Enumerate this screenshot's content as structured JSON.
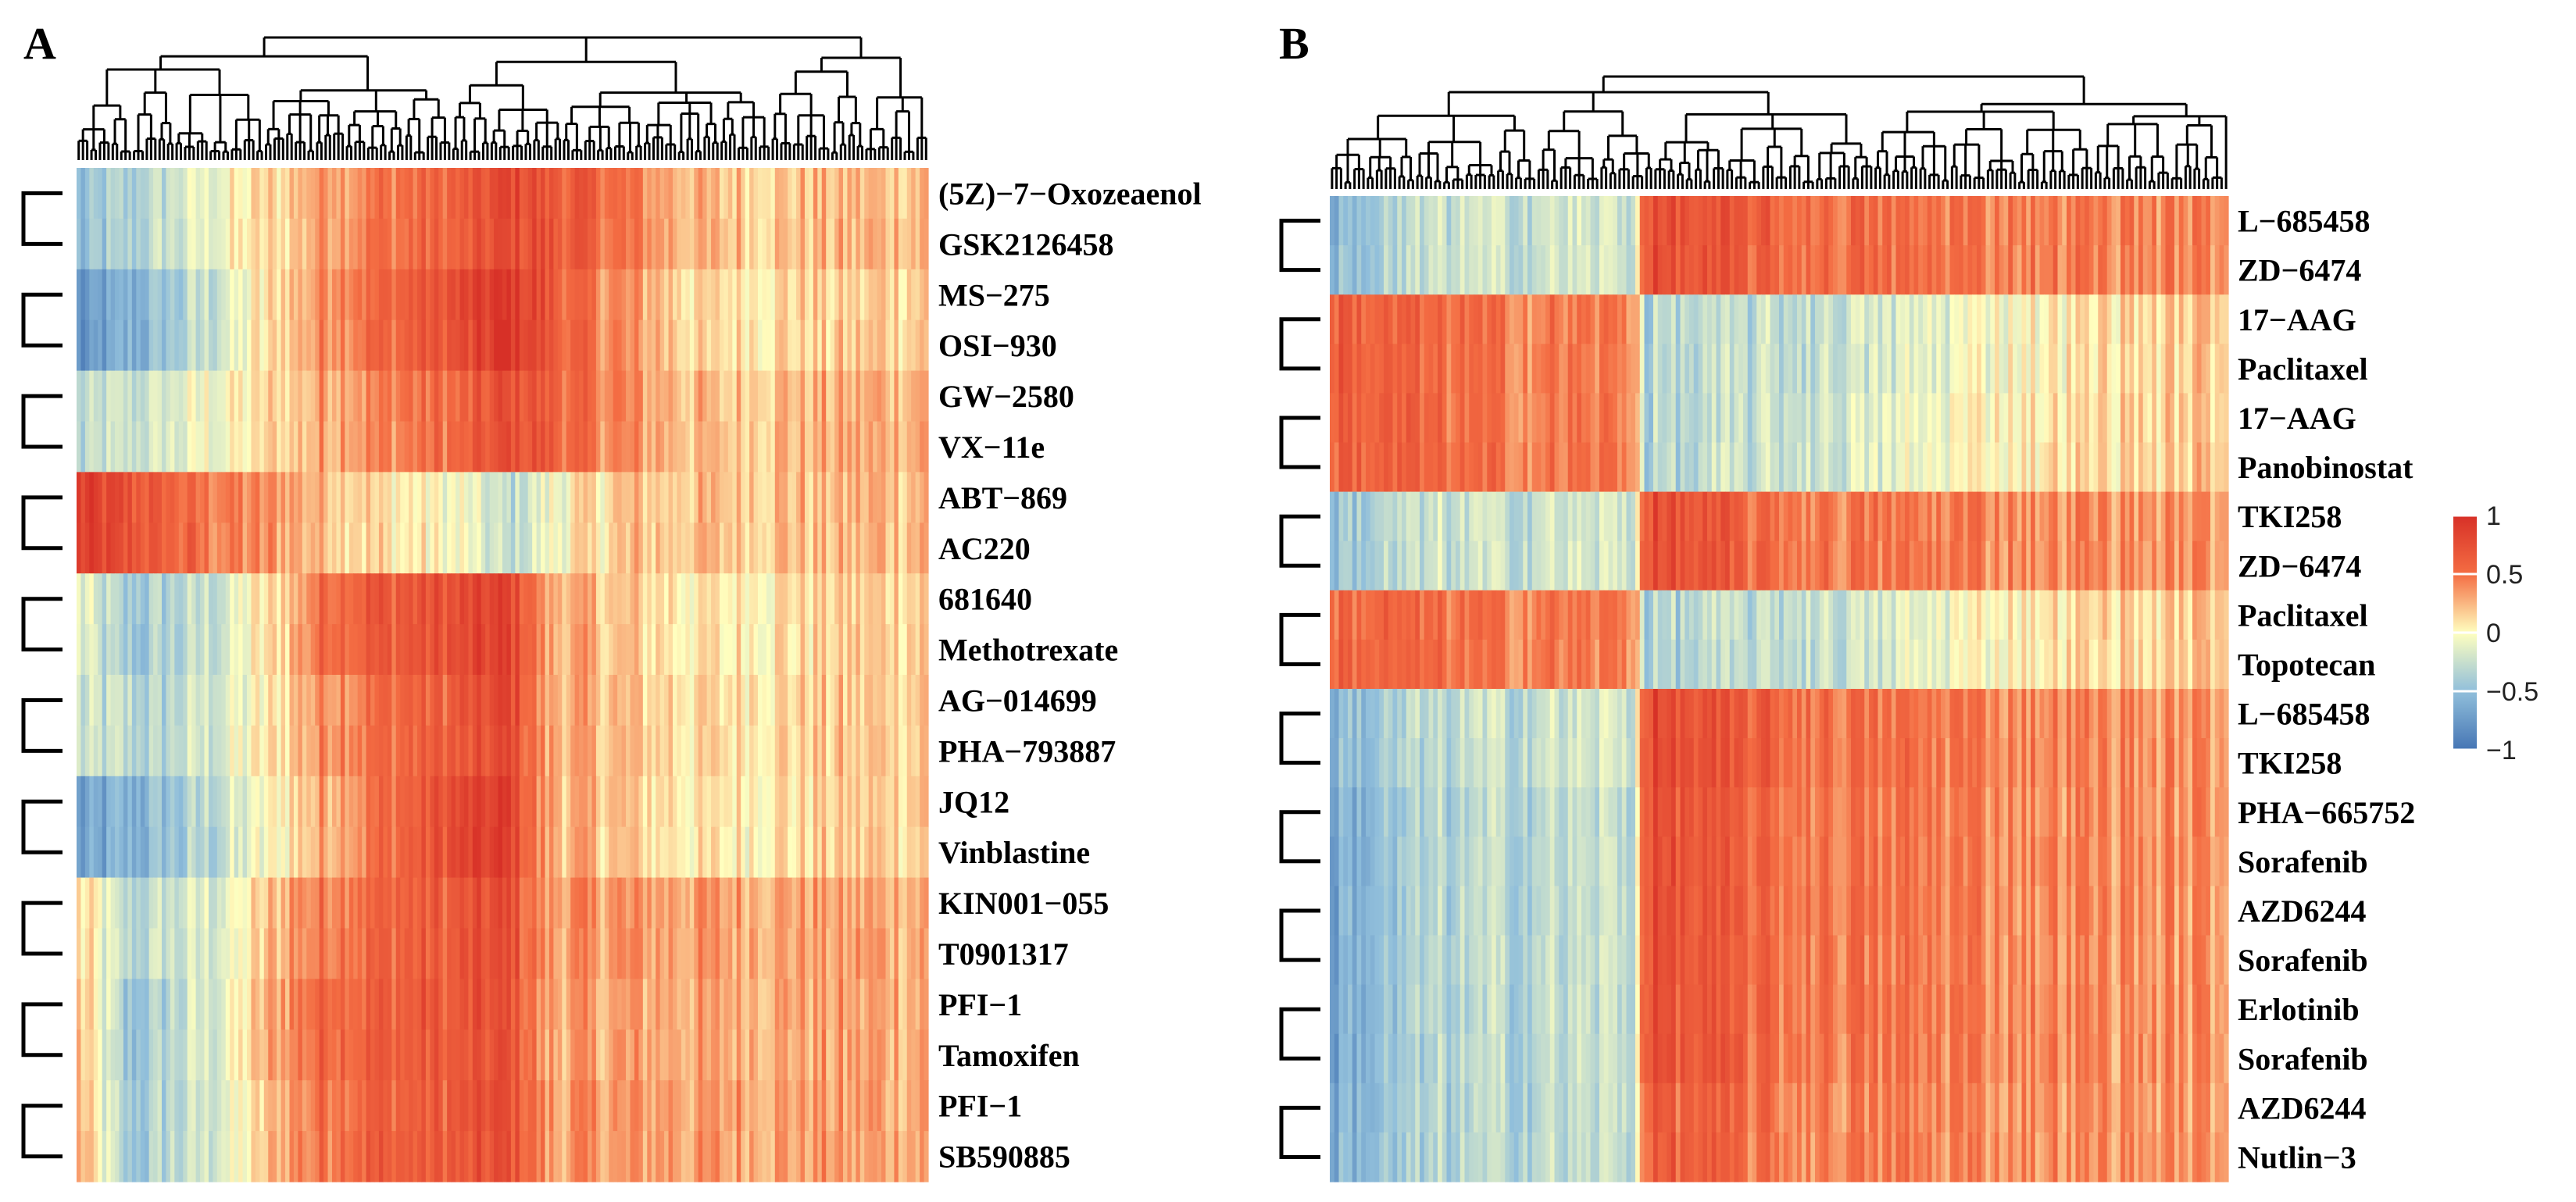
{
  "chart_data": [
    {
      "panel": "A",
      "type": "heatmap",
      "rows": [
        "(5Z)−7−Oxozeaenol",
        "GSK2126458",
        "MS−275",
        "OSI−930",
        "GW−2580",
        "VX−11e",
        "ABT−869",
        "AC220",
        "681640",
        "Methotrexate",
        "AG−014699",
        "PHA−793887",
        "JQ12",
        "Vinblastine",
        "KIN001−055",
        "T0901317",
        "PFI−1",
        "Tamoxifen",
        "PFI−1",
        "SB590885"
      ],
      "row_clustering": "pairs",
      "n_columns": 200,
      "block_profiles": [
        {
          "rows": [
            0,
            1
          ],
          "segments": [
            [
              0.0,
              -0.55
            ],
            [
              0.09,
              -0.3
            ],
            [
              0.24,
              0.15
            ],
            [
              0.3,
              0.4
            ],
            [
              0.46,
              0.6
            ],
            [
              0.51,
              0.8
            ],
            [
              0.61,
              0.55
            ],
            [
              0.74,
              0.2
            ],
            [
              1.0,
              0.25
            ]
          ]
        },
        {
          "rows": [
            2,
            3
          ],
          "segments": [
            [
              0.0,
              -0.85
            ],
            [
              0.12,
              -0.4
            ],
            [
              0.22,
              0.05
            ],
            [
              0.3,
              0.45
            ],
            [
              0.46,
              0.75
            ],
            [
              0.51,
              0.95
            ],
            [
              0.59,
              0.5
            ],
            [
              0.74,
              0.1
            ],
            [
              1.0,
              0.2
            ]
          ]
        },
        {
          "rows": [
            4,
            5
          ],
          "segments": [
            [
              0.0,
              -0.35
            ],
            [
              0.12,
              -0.15
            ],
            [
              0.22,
              0.1
            ],
            [
              0.3,
              0.35
            ],
            [
              0.46,
              0.55
            ],
            [
              0.51,
              0.75
            ],
            [
              0.61,
              0.45
            ],
            [
              0.74,
              0.2
            ],
            [
              1.0,
              0.3
            ]
          ]
        },
        {
          "rows": [
            6,
            7
          ],
          "segments": [
            [
              0.0,
              0.85
            ],
            [
              0.1,
              0.6
            ],
            [
              0.22,
              0.35
            ],
            [
              0.3,
              0.25
            ],
            [
              0.46,
              -0.1
            ],
            [
              0.51,
              -0.3
            ],
            [
              0.58,
              0.05
            ],
            [
              0.66,
              0.2
            ],
            [
              1.0,
              0.25
            ]
          ]
        },
        {
          "rows": [
            8,
            9
          ],
          "segments": [
            [
              0.0,
              -0.1
            ],
            [
              0.06,
              -0.45
            ],
            [
              0.16,
              -0.25
            ],
            [
              0.24,
              0.15
            ],
            [
              0.3,
              0.6
            ],
            [
              0.46,
              0.75
            ],
            [
              0.51,
              0.85
            ],
            [
              0.55,
              0.3
            ],
            [
              0.74,
              0.05
            ],
            [
              1.0,
              0.2
            ]
          ]
        },
        {
          "rows": [
            10,
            11
          ],
          "segments": [
            [
              0.0,
              -0.25
            ],
            [
              0.1,
              -0.35
            ],
            [
              0.22,
              0.0
            ],
            [
              0.3,
              0.45
            ],
            [
              0.46,
              0.65
            ],
            [
              0.51,
              0.8
            ],
            [
              0.55,
              0.3
            ],
            [
              0.74,
              0.1
            ],
            [
              1.0,
              0.2
            ]
          ]
        },
        {
          "rows": [
            12,
            13
          ],
          "segments": [
            [
              0.0,
              -0.75
            ],
            [
              0.1,
              -0.5
            ],
            [
              0.2,
              -0.15
            ],
            [
              0.3,
              0.35
            ],
            [
              0.46,
              0.8
            ],
            [
              0.51,
              0.85
            ],
            [
              0.55,
              0.3
            ],
            [
              0.74,
              0.05
            ],
            [
              1.0,
              0.2
            ]
          ]
        },
        {
          "rows": [
            14,
            15
          ],
          "segments": [
            [
              0.0,
              0.15
            ],
            [
              0.06,
              -0.35
            ],
            [
              0.18,
              -0.1
            ],
            [
              0.26,
              0.4
            ],
            [
              0.32,
              0.55
            ],
            [
              0.46,
              0.65
            ],
            [
              0.51,
              0.75
            ],
            [
              0.55,
              0.35
            ],
            [
              1.0,
              0.3
            ]
          ]
        },
        {
          "rows": [
            16,
            17
          ],
          "segments": [
            [
              0.0,
              0.25
            ],
            [
              0.06,
              -0.5
            ],
            [
              0.16,
              -0.15
            ],
            [
              0.24,
              0.35
            ],
            [
              0.3,
              0.6
            ],
            [
              0.46,
              0.65
            ],
            [
              0.51,
              0.75
            ],
            [
              0.55,
              0.3
            ],
            [
              1.0,
              0.3
            ]
          ]
        },
        {
          "rows": [
            18,
            19
          ],
          "segments": [
            [
              0.0,
              0.3
            ],
            [
              0.06,
              -0.45
            ],
            [
              0.18,
              -0.1
            ],
            [
              0.26,
              0.4
            ],
            [
              0.32,
              0.6
            ],
            [
              0.46,
              0.65
            ],
            [
              0.51,
              0.75
            ],
            [
              0.55,
              0.35
            ],
            [
              1.0,
              0.3
            ]
          ]
        }
      ]
    },
    {
      "panel": "B",
      "type": "heatmap",
      "rows": [
        "L−685458",
        "ZD−6474",
        "17−AAG",
        "Paclitaxel",
        "17−AAG",
        "Panobinostat",
        "TKI258",
        "ZD−6474",
        "Paclitaxel",
        "Topotecan",
        "L−685458",
        "TKI258",
        "PHA−665752",
        "Sorafenib",
        "AZD6244",
        "Sorafenib",
        "Erlotinib",
        "Sorafenib",
        "AZD6244",
        "Nutlin−3"
      ],
      "row_clustering": "pairs",
      "n_columns": 200,
      "block_profiles": [
        {
          "rows": [
            0,
            1
          ],
          "segments": [
            [
              0.0,
              -0.55
            ],
            [
              0.12,
              -0.25
            ],
            [
              0.34,
              -0.2
            ],
            [
              0.35,
              0.75
            ],
            [
              0.5,
              0.55
            ],
            [
              1.0,
              0.4
            ]
          ]
        },
        {
          "rows": [
            2,
            3
          ],
          "segments": [
            [
              0.0,
              0.65
            ],
            [
              0.2,
              0.45
            ],
            [
              0.34,
              0.45
            ],
            [
              0.35,
              -0.35
            ],
            [
              0.62,
              -0.2
            ],
            [
              0.74,
              0.0
            ],
            [
              1.0,
              0.2
            ]
          ]
        },
        {
          "rows": [
            4,
            5
          ],
          "segments": [
            [
              0.0,
              0.65
            ],
            [
              0.2,
              0.45
            ],
            [
              0.34,
              0.45
            ],
            [
              0.35,
              -0.35
            ],
            [
              0.62,
              -0.15
            ],
            [
              0.74,
              0.05
            ],
            [
              1.0,
              0.2
            ]
          ]
        },
        {
          "rows": [
            6,
            7
          ],
          "segments": [
            [
              0.0,
              -0.45
            ],
            [
              0.12,
              -0.25
            ],
            [
              0.34,
              -0.2
            ],
            [
              0.35,
              0.75
            ],
            [
              0.5,
              0.5
            ],
            [
              1.0,
              0.35
            ]
          ]
        },
        {
          "rows": [
            8,
            9
          ],
          "segments": [
            [
              0.0,
              0.6
            ],
            [
              0.2,
              0.45
            ],
            [
              0.34,
              0.45
            ],
            [
              0.35,
              -0.35
            ],
            [
              0.62,
              -0.2
            ],
            [
              0.74,
              0.05
            ],
            [
              1.0,
              0.2
            ]
          ]
        },
        {
          "rows": [
            10,
            11
          ],
          "segments": [
            [
              0.0,
              -0.55
            ],
            [
              0.12,
              -0.3
            ],
            [
              0.34,
              -0.2
            ],
            [
              0.35,
              0.8
            ],
            [
              0.5,
              0.55
            ],
            [
              1.0,
              0.35
            ]
          ]
        },
        {
          "rows": [
            12,
            13
          ],
          "segments": [
            [
              0.0,
              -0.65
            ],
            [
              0.12,
              -0.35
            ],
            [
              0.34,
              -0.25
            ],
            [
              0.35,
              0.75
            ],
            [
              0.5,
              0.5
            ],
            [
              1.0,
              0.35
            ]
          ]
        },
        {
          "rows": [
            14,
            15
          ],
          "segments": [
            [
              0.0,
              -0.65
            ],
            [
              0.12,
              -0.35
            ],
            [
              0.34,
              -0.25
            ],
            [
              0.35,
              0.75
            ],
            [
              0.5,
              0.5
            ],
            [
              1.0,
              0.35
            ]
          ]
        },
        {
          "rows": [
            16,
            17
          ],
          "segments": [
            [
              0.0,
              -0.65
            ],
            [
              0.12,
              -0.35
            ],
            [
              0.34,
              -0.25
            ],
            [
              0.35,
              0.75
            ],
            [
              0.5,
              0.5
            ],
            [
              1.0,
              0.35
            ]
          ]
        },
        {
          "rows": [
            18,
            19
          ],
          "segments": [
            [
              0.0,
              -0.6
            ],
            [
              0.12,
              -0.35
            ],
            [
              0.34,
              -0.25
            ],
            [
              0.35,
              0.65
            ],
            [
              0.5,
              0.45
            ],
            [
              1.0,
              0.35
            ]
          ]
        }
      ]
    }
  ],
  "legend": {
    "ticks": [
      "1",
      "0.5",
      "0",
      "−0.5",
      "−1"
    ],
    "tick_values": [
      1,
      0.5,
      0,
      -0.5,
      -1
    ],
    "range": [
      -1,
      1
    ],
    "colors": {
      "neg": "#4575b4",
      "mid": "#ffffbf",
      "pos": "#d73027"
    },
    "placement": "right"
  }
}
